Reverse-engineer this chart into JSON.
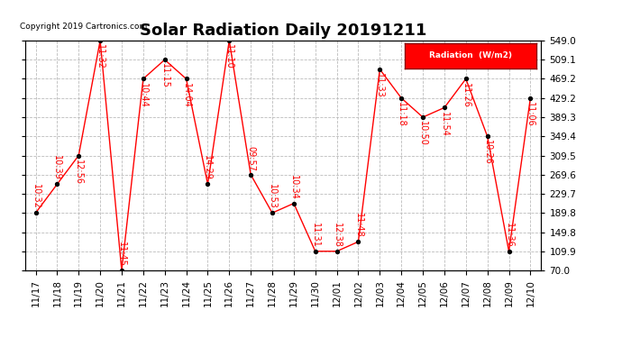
{
  "title": "Solar Radiation Daily 20191211",
  "copyright": "Copyright 2019 Cartronics.com",
  "legend_label": "Radiation  (W/m2)",
  "x_labels": [
    "11/17",
    "11/18",
    "11/19",
    "11/20",
    "11/21",
    "11/22",
    "11/23",
    "11/24",
    "11/25",
    "11/26",
    "11/27",
    "11/28",
    "11/29",
    "11/30",
    "12/01",
    "12/02",
    "12/03",
    "12/04",
    "12/05",
    "12/06",
    "12/07",
    "12/08",
    "12/09",
    "12/10"
  ],
  "y_values": [
    189.8,
    249.7,
    309.5,
    549.0,
    70.0,
    469.2,
    509.1,
    469.2,
    249.7,
    549.0,
    269.6,
    189.8,
    209.7,
    109.9,
    109.9,
    129.8,
    489.1,
    429.2,
    389.3,
    409.2,
    469.2,
    349.4,
    109.9,
    429.2
  ],
  "point_labels": [
    "10:32",
    "10:39",
    "12:56",
    "11:32",
    "11:45",
    "10:44",
    "11:15",
    "14:04",
    "14:29",
    "11:10",
    "09:57",
    "10:53",
    "10:34",
    "11:31",
    "12:38",
    "11:48",
    "11:33",
    "11:18",
    "10:50",
    "11:54",
    "11:26",
    "10:26",
    "11:36",
    "11:06"
  ],
  "ylim": [
    70.0,
    549.0
  ],
  "yticks": [
    70.0,
    109.9,
    149.8,
    189.8,
    229.7,
    269.6,
    309.5,
    349.4,
    389.3,
    429.2,
    469.2,
    509.1,
    549.0
  ],
  "line_color": "red",
  "marker_color": "black",
  "bg_color": "white",
  "plot_bg_color": "white",
  "grid_color": "#bbbbbb",
  "title_fontsize": 13,
  "label_fontsize": 7.5,
  "point_label_fontsize": 7,
  "copyright_fontsize": 6.5,
  "legend_bg": "red",
  "legend_text_color": "white"
}
